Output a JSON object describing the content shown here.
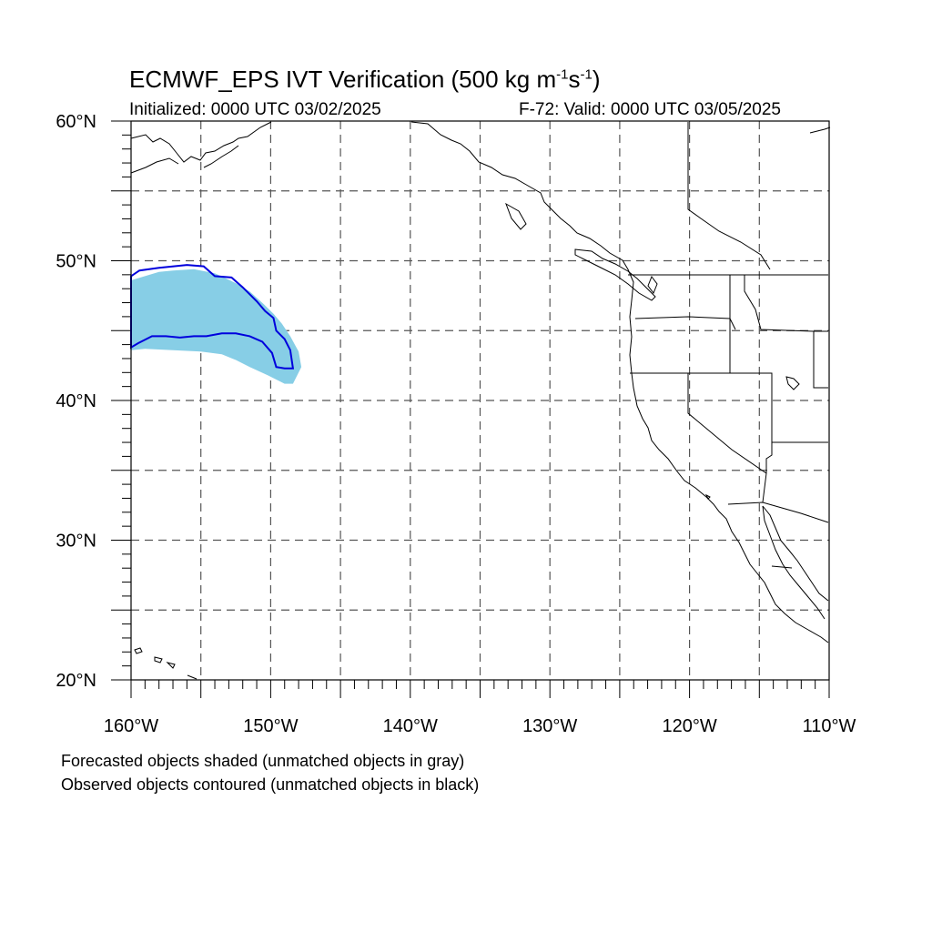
{
  "title": {
    "main": "ECMWF_EPS IVT Verification (500 kg m",
    "exp1": "-1",
    "mid": "s",
    "exp2": "-1",
    "close": ")"
  },
  "initialized": "Initialized: 0000 UTC 03/02/2025",
  "valid": "F-72: Valid: 0000 UTC 03/05/2025",
  "notes": {
    "forecast": "Forecasted objects shaded (unmatched objects in gray)",
    "observed": "Observed objects contoured (unmatched objects in black)"
  },
  "map": {
    "lon_range": [
      -160,
      -110
    ],
    "lat_range": [
      20,
      60
    ],
    "lat_labels": [
      {
        "lat": 60,
        "text": "60°N"
      },
      {
        "lat": 50,
        "text": "50°N"
      },
      {
        "lat": 40,
        "text": "40°N"
      },
      {
        "lat": 30,
        "text": "30°N"
      },
      {
        "lat": 20,
        "text": "20°N"
      }
    ],
    "lon_labels": [
      {
        "lon": -160,
        "text": "160°W"
      },
      {
        "lon": -150,
        "text": "150°W"
      },
      {
        "lon": -140,
        "text": "140°W"
      },
      {
        "lon": -130,
        "text": "130°W"
      },
      {
        "lon": -120,
        "text": "120°W"
      },
      {
        "lon": -110,
        "text": "110°W"
      }
    ],
    "forecast_color": "#87cee6",
    "observed_color": "#0000dd",
    "forecast_object": [
      [
        -160,
        48.6
      ],
      [
        -159,
        48.9
      ],
      [
        -158,
        49.2
      ],
      [
        -157,
        49.3
      ],
      [
        -155.5,
        49.4
      ],
      [
        -154,
        49.1
      ],
      [
        -152.5,
        48.4
      ],
      [
        -151.5,
        47.8
      ],
      [
        -150.5,
        46.9
      ],
      [
        -149.8,
        46.2
      ],
      [
        -149.2,
        45.5
      ],
      [
        -148.6,
        44.6
      ],
      [
        -148,
        43.5
      ],
      [
        -147.8,
        42.4
      ],
      [
        -148.4,
        41.2
      ],
      [
        -149,
        41.2
      ],
      [
        -150.2,
        41.8
      ],
      [
        -151.5,
        42.4
      ],
      [
        -152.5,
        42.9
      ],
      [
        -153.5,
        43.3
      ],
      [
        -155,
        43.5
      ],
      [
        -157,
        43.6
      ],
      [
        -159,
        43.7
      ],
      [
        -160,
        43.6
      ]
    ],
    "observed_object": [
      [
        -160,
        48.9
      ],
      [
        -159.4,
        49.3
      ],
      [
        -158,
        49.5
      ],
      [
        -156,
        49.7
      ],
      [
        -154.8,
        49.6
      ],
      [
        -154,
        48.9
      ],
      [
        -152.8,
        48.8
      ],
      [
        -152,
        48.1
      ],
      [
        -151,
        47.1
      ],
      [
        -150.4,
        46.4
      ],
      [
        -149.8,
        45.9
      ],
      [
        -149.6,
        45.0
      ],
      [
        -149,
        44.4
      ],
      [
        -148.6,
        43.6
      ],
      [
        -148.4,
        42.3
      ],
      [
        -149,
        42.3
      ],
      [
        -149.6,
        42.4
      ],
      [
        -149.9,
        43.4
      ],
      [
        -150.6,
        44.2
      ],
      [
        -151.5,
        44.6
      ],
      [
        -152.5,
        44.8
      ],
      [
        -153.5,
        44.8
      ],
      [
        -154.6,
        44.6
      ],
      [
        -155.5,
        44.6
      ],
      [
        -156.5,
        44.5
      ],
      [
        -157.5,
        44.6
      ],
      [
        -158.5,
        44.6
      ],
      [
        -159.5,
        44.1
      ],
      [
        -160,
        43.8
      ]
    ]
  }
}
